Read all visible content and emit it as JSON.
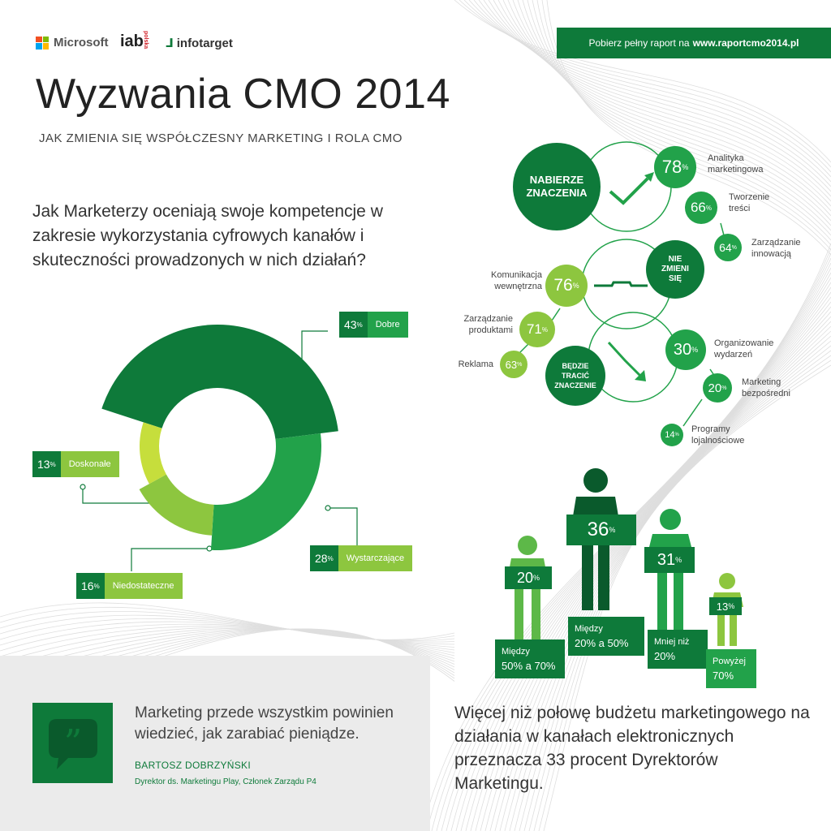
{
  "logos": {
    "microsoft": "Microsoft",
    "iab": "iab",
    "iab_sub": "polska",
    "infotarget": "infotarget"
  },
  "topbar": {
    "text": "Pobierz pełny raport na",
    "link": "www.raportcmo2014.pl"
  },
  "header": {
    "title": "Wyzwania CMO 2014",
    "subtitle": "JAK ZMIENIA SIĘ WSPÓŁCZESNY MARKETING I ROLA CMO"
  },
  "question": "Jak Marketerzy oceniają swoje kompetencje w zakresie wykorzystania cyfrowych kanałów i skuteczności prowadzonych w nich działań?",
  "donut": {
    "segments": [
      {
        "label": "Dobre",
        "value": 43,
        "color": "#0e7a3a"
      },
      {
        "label": "Wystarczające",
        "value": 28,
        "color": "#22a24a"
      },
      {
        "label": "Niedostateczne",
        "value": 16,
        "color": "#8dc63f"
      },
      {
        "label": "Doskonałe",
        "value": 13,
        "color": "#c6de3c"
      }
    ],
    "pct_suffix": "%"
  },
  "importance": {
    "nabierze": "NABIERZE ZNACZENIA",
    "nie_zmieni": "NIE ZMIENI SIĘ",
    "bedzie_tracic": "BĘDZIE TRACIĆ ZNACZENIE",
    "items_up": [
      {
        "value": "78",
        "label": "Analityka marketingowa"
      },
      {
        "value": "66",
        "label": "Tworzenie treści"
      },
      {
        "value": "64",
        "label": "Zarządzanie innowacją"
      }
    ],
    "items_same": [
      {
        "value": "76",
        "label": "Komunikacja wewnętrzna"
      },
      {
        "value": "71",
        "label": "Zarządzanie produktami"
      },
      {
        "value": "63",
        "label": "Reklama"
      }
    ],
    "items_down": [
      {
        "value": "30",
        "label": "Organizowanie wydarzeń"
      },
      {
        "value": "20",
        "label": "Marketing bezpośredni"
      },
      {
        "value": "14",
        "label": "Programy lojalnościowe"
      }
    ],
    "pct": "%"
  },
  "budget": {
    "people": [
      {
        "value": "20",
        "range_label": "Między",
        "range_value": "50% a 70%"
      },
      {
        "value": "36",
        "range_label": "Między",
        "range_value": "20% a 50%"
      },
      {
        "value": "31",
        "range_label": "Mniej niż",
        "range_value": "20%"
      },
      {
        "value": "13",
        "range_label": "Powyżej",
        "range_value": "70%"
      }
    ],
    "pct": "%",
    "text": "Więcej niż połowę budżetu marketingowego na działania w kanałach elektronicznych przeznacza 33 procent Dyrektorów Marketingu."
  },
  "quote": {
    "text": "Marketing przede wszystkim powinien wiedzieć, jak zarabiać pieniądze.",
    "author": "BARTOSZ DOBRZYŃSKI",
    "role": "Dyrektor ds. Marketingu Play, Członek Zarządu P4"
  }
}
